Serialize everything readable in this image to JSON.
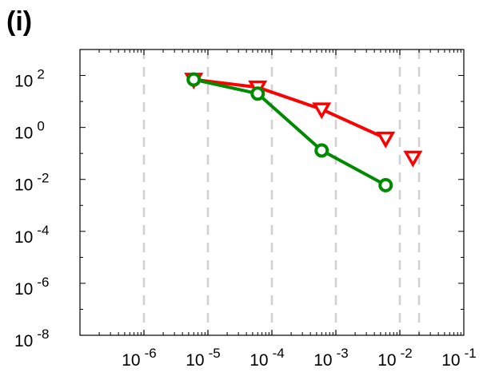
{
  "panel_label": "(i)",
  "colors": {
    "series_1": "#ff0000",
    "series_2": "#008a00",
    "grid": "#d0d0d0",
    "axis": "#000000"
  },
  "chart_data": {
    "type": "scatter",
    "x_scale": "log",
    "y_scale": "log",
    "xlim": [
      1e-07,
      0.1
    ],
    "ylim": [
      1e-08,
      1000.0
    ],
    "x_ticks": [
      {
        "value": 1e-06,
        "base": "10",
        "exp": "-6"
      },
      {
        "value": 1e-05,
        "base": "10",
        "exp": "-5"
      },
      {
        "value": 0.0001,
        "base": "10",
        "exp": "-4"
      },
      {
        "value": 0.001,
        "base": "10",
        "exp": "-3"
      },
      {
        "value": 0.01,
        "base": "10",
        "exp": "-2"
      },
      {
        "value": 0.1,
        "base": "10",
        "exp": "-1"
      }
    ],
    "y_ticks": [
      {
        "value": 100.0,
        "base": "10",
        "exp": "2"
      },
      {
        "value": 1.0,
        "base": "10",
        "exp": "0"
      },
      {
        "value": 0.01,
        "base": "10",
        "exp": "-2"
      },
      {
        "value": 0.0001,
        "base": "10",
        "exp": "-4"
      },
      {
        "value": 1e-06,
        "base": "10",
        "exp": "-6"
      },
      {
        "value": 1e-08,
        "base": "10",
        "exp": "-8"
      }
    ],
    "vertical_dashed_lines": [
      1e-06,
      1e-05,
      0.0001,
      0.001,
      0.01,
      0.02
    ],
    "grid": false,
    "series": [
      {
        "marker": "triangle-down",
        "color": "#ff0000",
        "line_points": [
          [
            6e-06,
            70
          ],
          [
            6e-05,
            35
          ],
          [
            0.0006,
            5
          ],
          [
            0.006,
            0.38
          ]
        ],
        "extra_points": [
          [
            0.016,
            0.07
          ]
        ]
      },
      {
        "marker": "circle",
        "color": "#008a00",
        "line_points": [
          [
            6e-06,
            70
          ],
          [
            6e-05,
            20
          ],
          [
            0.0006,
            0.13
          ],
          [
            0.006,
            0.006
          ]
        ]
      }
    ]
  }
}
